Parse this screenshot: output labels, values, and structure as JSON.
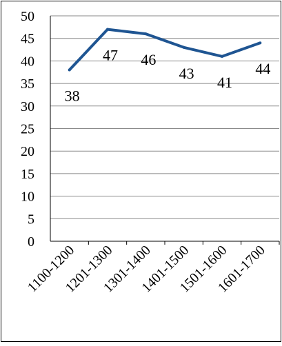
{
  "chart_data": {
    "type": "line",
    "categories": [
      "1100-1200",
      "1201-1300",
      "1301-1400",
      "1401-1500",
      "1501-1600",
      "1601-1700"
    ],
    "values": [
      38,
      47,
      46,
      43,
      41,
      44
    ],
    "data_labels": [
      "38",
      "47",
      "46",
      "43",
      "41",
      "44"
    ],
    "ylim": [
      0,
      50
    ],
    "y_ticks": [
      "0",
      "5",
      "10",
      "15",
      "20",
      "25",
      "30",
      "35",
      "40",
      "45",
      "50"
    ],
    "grid": true,
    "colors": {
      "line": "#1f5592",
      "grid": "#8a8a8a",
      "border": "#000000",
      "text": "#000000"
    }
  }
}
